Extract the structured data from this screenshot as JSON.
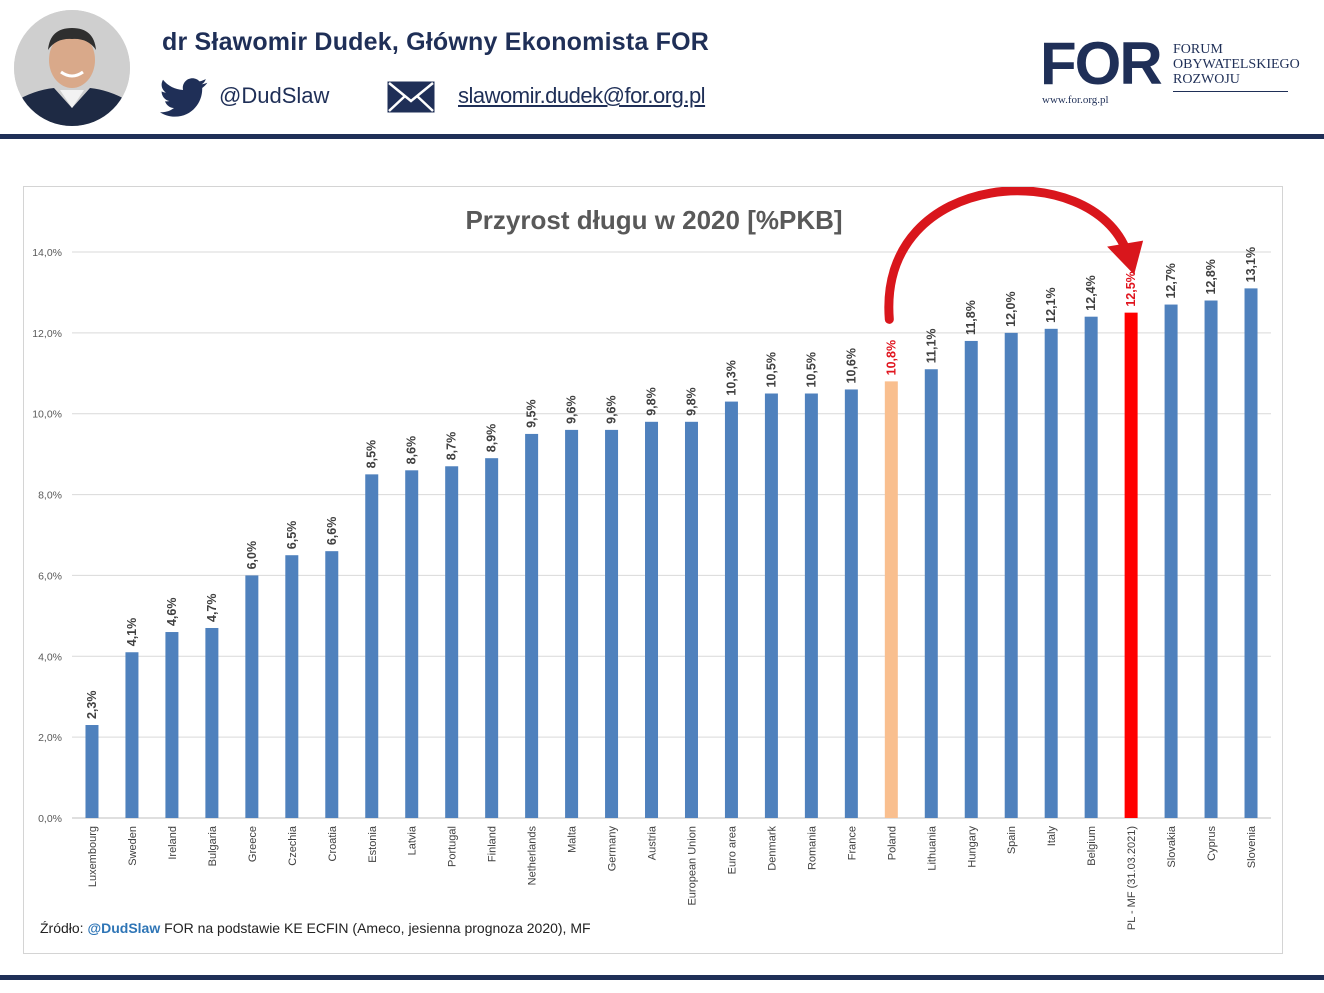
{
  "header": {
    "author": "dr Sławomir Dudek, Główny Ekonomista FOR",
    "twitter_handle": "@DudSlaw",
    "email": "slawomir.dudek@for.org.pl"
  },
  "logo": {
    "mark": "FOR",
    "line1": "FORUM",
    "line2": "OBYWATELSKIEGO",
    "line3": "ROZWOJU",
    "url": "www.for.org.pl"
  },
  "colors": {
    "navy": "#1f2f57",
    "bar_default": "#4f81bd",
    "bar_poland": "#f9bf8f",
    "bar_plmf": "#ff0000",
    "highlight_label": "#e0141e",
    "arrow": "#d9161c"
  },
  "source": {
    "prefix": "Źródło:",
    "handle": "@DudSlaw",
    "rest": "FOR na podstawie KE ECFIN (Ameco, jesienna prognoza 2020), MF"
  },
  "chart_data": {
    "type": "bar",
    "title": "Przyrost długu w 2020 [%PKB]",
    "xlabel": "",
    "ylabel": "",
    "ylim": [
      0,
      14
    ],
    "grid": true,
    "yticks": [
      "0,0%",
      "2,0%",
      "4,0%",
      "6,0%",
      "8,0%",
      "10,0%",
      "12,0%",
      "14,0%"
    ],
    "categories": [
      "Luxembourg",
      "Sweden",
      "Ireland",
      "Bulgaria",
      "Greece",
      "Czechia",
      "Croatia",
      "Estonia",
      "Latvia",
      "Portugal",
      "Finland",
      "Netherlands",
      "Malta",
      "Germany",
      "Austria",
      "European Union",
      "Euro area",
      "Denmark",
      "Romania",
      "France",
      "Poland",
      "Lithuania",
      "Hungary",
      "Spain",
      "Italy",
      "Belgium",
      "PL - MF (31.03.2021)",
      "Slovakia",
      "Cyprus",
      "Slovenia"
    ],
    "values": [
      2.3,
      4.1,
      4.6,
      4.7,
      6.0,
      6.5,
      6.6,
      8.5,
      8.6,
      8.7,
      8.9,
      9.5,
      9.6,
      9.6,
      9.8,
      9.8,
      10.3,
      10.5,
      10.5,
      10.6,
      10.8,
      11.1,
      11.8,
      12.0,
      12.1,
      12.4,
      12.5,
      12.7,
      12.8,
      13.1
    ],
    "labels": [
      "2,3%",
      "4,1%",
      "4,6%",
      "4,7%",
      "6,0%",
      "6,5%",
      "6,6%",
      "8,5%",
      "8,6%",
      "8,7%",
      "8,9%",
      "9,5%",
      "9,6%",
      "9,6%",
      "9,8%",
      "9,8%",
      "10,3%",
      "10,5%",
      "10,5%",
      "10,6%",
      "10,8%",
      "11,1%",
      "11,8%",
      "12,0%",
      "12,1%",
      "12,4%",
      "12,5%",
      "12,7%",
      "12,8%",
      "13,1%"
    ],
    "highlight": {
      "Poland": "poland",
      "PL - MF (31.03.2021)": "plmf"
    },
    "annotation": {
      "type": "curved-arrow",
      "from": "Poland",
      "to": "PL - MF (31.03.2021)"
    }
  }
}
